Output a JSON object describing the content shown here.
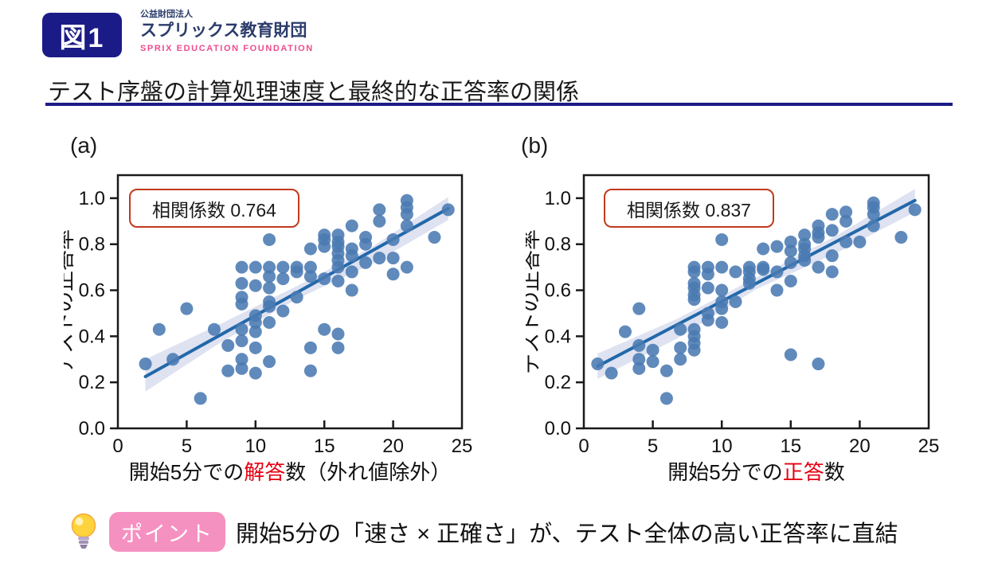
{
  "header": {
    "figure_label": "図1",
    "org_small": "公益財団法人",
    "org_name": "スプリックス教育財団",
    "org_en": "SPRIX EDUCATION FOUNDATION"
  },
  "title": "テスト序盤の計算処理速度と最終的な正答率の関係",
  "point": {
    "icon": "lightbulb-icon",
    "badge": "ポイント",
    "text": "開始5分の「速さ × 正確さ」が、テスト全体の高い正答率に直結"
  },
  "colors": {
    "navy": "#1b1b87",
    "logo_navy": "#2b3c6b",
    "logo_pink": "#ef4b8f",
    "badge_pink": "#f591c1",
    "accent_red": "#e60012",
    "dot": "#4a7ab2",
    "trend": "#2268aa",
    "band": "#d3d8ec",
    "annotation_border": "#c23a1c",
    "axis": "#1a1a1a"
  },
  "chart_data": [
    {
      "type": "scatter",
      "panel_label": "(a)",
      "annotation": "相関係数 0.764",
      "ylabel": "テストの正答率",
      "xlabel_parts": [
        {
          "text": "開始5分での",
          "red": false
        },
        {
          "text": "解答",
          "red": true
        },
        {
          "text": "数（外れ値除外）",
          "red": false
        }
      ],
      "xlim": [
        0,
        25
      ],
      "ylim": [
        0,
        1.1
      ],
      "xticks": [
        0,
        5,
        10,
        15,
        20,
        25
      ],
      "yticks": [
        "0.0",
        "0.2",
        "0.4",
        "0.6",
        "0.8",
        "1.0"
      ],
      "grid": false,
      "points": [
        [
          2,
          0.28
        ],
        [
          3,
          0.43
        ],
        [
          4,
          0.3
        ],
        [
          5,
          0.52
        ],
        [
          6,
          0.13
        ],
        [
          7,
          0.43
        ],
        [
          8,
          0.36
        ],
        [
          8,
          0.25
        ],
        [
          9,
          0.7
        ],
        [
          9,
          0.63
        ],
        [
          9,
          0.57
        ],
        [
          9,
          0.54
        ],
        [
          9,
          0.43
        ],
        [
          9,
          0.38
        ],
        [
          9,
          0.3
        ],
        [
          9,
          0.26
        ],
        [
          10,
          0.7
        ],
        [
          10,
          0.62
        ],
        [
          10,
          0.49
        ],
        [
          10,
          0.46
        ],
        [
          10,
          0.42
        ],
        [
          10,
          0.35
        ],
        [
          10,
          0.24
        ],
        [
          11,
          0.82
        ],
        [
          11,
          0.7
        ],
        [
          11,
          0.66
        ],
        [
          11,
          0.61
        ],
        [
          11,
          0.55
        ],
        [
          11,
          0.53
        ],
        [
          11,
          0.46
        ],
        [
          11,
          0.29
        ],
        [
          12,
          0.7
        ],
        [
          12,
          0.65
        ],
        [
          12,
          0.51
        ],
        [
          13,
          0.7
        ],
        [
          13,
          0.68
        ],
        [
          13,
          0.57
        ],
        [
          14,
          0.78
        ],
        [
          14,
          0.7
        ],
        [
          14,
          0.66
        ],
        [
          14,
          0.35
        ],
        [
          14,
          0.25
        ],
        [
          15,
          0.84
        ],
        [
          15,
          0.82
        ],
        [
          15,
          0.79
        ],
        [
          15,
          0.65
        ],
        [
          15,
          0.43
        ],
        [
          16,
          0.84
        ],
        [
          16,
          0.81
        ],
        [
          16,
          0.79
        ],
        [
          16,
          0.76
        ],
        [
          16,
          0.73
        ],
        [
          16,
          0.7
        ],
        [
          16,
          0.64
        ],
        [
          16,
          0.41
        ],
        [
          16,
          0.35
        ],
        [
          17,
          0.88
        ],
        [
          17,
          0.78
        ],
        [
          17,
          0.75
        ],
        [
          17,
          0.68
        ],
        [
          17,
          0.6
        ],
        [
          18,
          0.83
        ],
        [
          18,
          0.8
        ],
        [
          18,
          0.72
        ],
        [
          19,
          0.95
        ],
        [
          19,
          0.9
        ],
        [
          19,
          0.74
        ],
        [
          20,
          0.82
        ],
        [
          20,
          0.74
        ],
        [
          20,
          0.67
        ],
        [
          21,
          0.99
        ],
        [
          21,
          0.96
        ],
        [
          21,
          0.93
        ],
        [
          21,
          0.88
        ],
        [
          21,
          0.7
        ],
        [
          23,
          0.83
        ],
        [
          24,
          0.95
        ]
      ],
      "trend": {
        "x": [
          2,
          24
        ],
        "y": [
          0.225,
          0.955
        ]
      },
      "band": {
        "x": [
          2,
          7.5,
          13,
          18.5,
          24
        ],
        "upper": [
          0.3,
          0.455,
          0.618,
          0.79,
          1.005
        ],
        "lower": [
          0.16,
          0.375,
          0.562,
          0.715,
          0.905
        ]
      }
    },
    {
      "type": "scatter",
      "panel_label": "(b)",
      "annotation": "相関係数 0.837",
      "ylabel": "テストの正答率",
      "xlabel_parts": [
        {
          "text": "開始5分での",
          "red": false
        },
        {
          "text": "正答",
          "red": true
        },
        {
          "text": "数",
          "red": false
        }
      ],
      "xlim": [
        0,
        25
      ],
      "ylim": [
        0,
        1.1
      ],
      "xticks": [
        0,
        5,
        10,
        15,
        20,
        25
      ],
      "yticks": [
        "0.0",
        "0.2",
        "0.4",
        "0.6",
        "0.8",
        "1.0"
      ],
      "grid": false,
      "points": [
        [
          1,
          0.28
        ],
        [
          2,
          0.24
        ],
        [
          3,
          0.42
        ],
        [
          4,
          0.52
        ],
        [
          4,
          0.36
        ],
        [
          4,
          0.3
        ],
        [
          4,
          0.26
        ],
        [
          5,
          0.34
        ],
        [
          5,
          0.29
        ],
        [
          6,
          0.25
        ],
        [
          6,
          0.13
        ],
        [
          7,
          0.43
        ],
        [
          7,
          0.35
        ],
        [
          7,
          0.3
        ],
        [
          8,
          0.7
        ],
        [
          8,
          0.68
        ],
        [
          8,
          0.63
        ],
        [
          8,
          0.61
        ],
        [
          8,
          0.58
        ],
        [
          8,
          0.56
        ],
        [
          8,
          0.43
        ],
        [
          8,
          0.4
        ],
        [
          8,
          0.37
        ],
        [
          8,
          0.34
        ],
        [
          9,
          0.7
        ],
        [
          9,
          0.67
        ],
        [
          9,
          0.61
        ],
        [
          9,
          0.5
        ],
        [
          9,
          0.47
        ],
        [
          10,
          0.82
        ],
        [
          10,
          0.7
        ],
        [
          10,
          0.6
        ],
        [
          10,
          0.55
        ],
        [
          10,
          0.52
        ],
        [
          10,
          0.46
        ],
        [
          11,
          0.68
        ],
        [
          11,
          0.55
        ],
        [
          12,
          0.7
        ],
        [
          12,
          0.68
        ],
        [
          12,
          0.65
        ],
        [
          12,
          0.63
        ],
        [
          13,
          0.78
        ],
        [
          13,
          0.7
        ],
        [
          13,
          0.69
        ],
        [
          14,
          0.79
        ],
        [
          14,
          0.68
        ],
        [
          14,
          0.6
        ],
        [
          15,
          0.81
        ],
        [
          15,
          0.77
        ],
        [
          15,
          0.72
        ],
        [
          15,
          0.64
        ],
        [
          15,
          0.32
        ],
        [
          16,
          0.84
        ],
        [
          16,
          0.8
        ],
        [
          16,
          0.78
        ],
        [
          16,
          0.75
        ],
        [
          16,
          0.73
        ],
        [
          17,
          0.88
        ],
        [
          17,
          0.85
        ],
        [
          17,
          0.83
        ],
        [
          17,
          0.7
        ],
        [
          17,
          0.28
        ],
        [
          18,
          0.93
        ],
        [
          18,
          0.86
        ],
        [
          18,
          0.75
        ],
        [
          18,
          0.68
        ],
        [
          19,
          0.94
        ],
        [
          19,
          0.9
        ],
        [
          19,
          0.81
        ],
        [
          20,
          0.81
        ],
        [
          21,
          0.98
        ],
        [
          21,
          0.96
        ],
        [
          21,
          0.93
        ],
        [
          21,
          0.88
        ],
        [
          23,
          0.83
        ],
        [
          24,
          0.95
        ]
      ],
      "trend": {
        "x": [
          1,
          24
        ],
        "y": [
          0.27,
          0.99
        ]
      },
      "band": {
        "x": [
          1,
          6.75,
          12.5,
          18.25,
          24
        ],
        "upper": [
          0.325,
          0.475,
          0.655,
          0.835,
          1.04
        ],
        "lower": [
          0.215,
          0.39,
          0.605,
          0.76,
          0.94
        ]
      }
    }
  ]
}
